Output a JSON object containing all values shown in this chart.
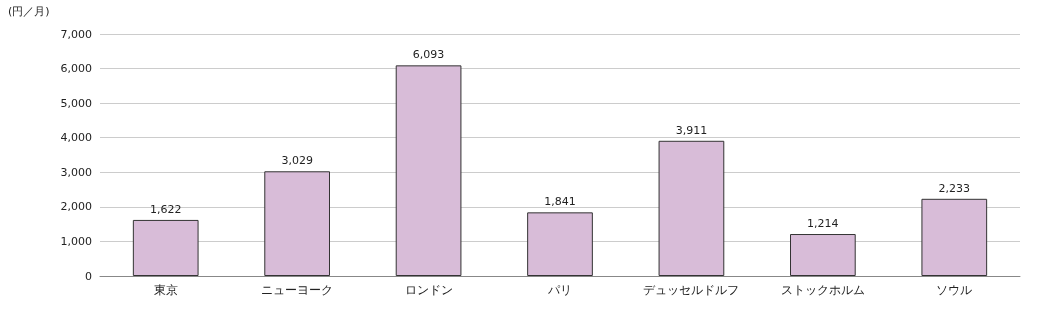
{
  "chart_data": {
    "type": "bar",
    "ylabel": "(円／月)",
    "categories": [
      "東京",
      "ニューヨーク",
      "ロンドン",
      "パリ",
      "デュッセルドルフ",
      "ストックホルム",
      "ソウル"
    ],
    "values": [
      1622,
      3029,
      6093,
      1841,
      3911,
      1214,
      2233
    ],
    "value_labels": [
      "1,622",
      "3,029",
      "6,093",
      "1,841",
      "3,911",
      "1,214",
      "2,233"
    ],
    "color": "#d8bcd8",
    "ylim": [
      0,
      7000
    ],
    "yticks": [
      0,
      {
        "value": 1000,
        "label": "1,000"
      },
      {
        "value": 2000,
        "label": "2,000"
      },
      {
        "value": 3000,
        "label": "3,000"
      },
      {
        "value": 4000,
        "label": "4,000"
      },
      {
        "value": 5000,
        "label": "5,000"
      },
      {
        "value": 6000,
        "label": "6,000"
      },
      {
        "value": 7000,
        "label": "7,000"
      }
    ],
    "grid": "y"
  }
}
